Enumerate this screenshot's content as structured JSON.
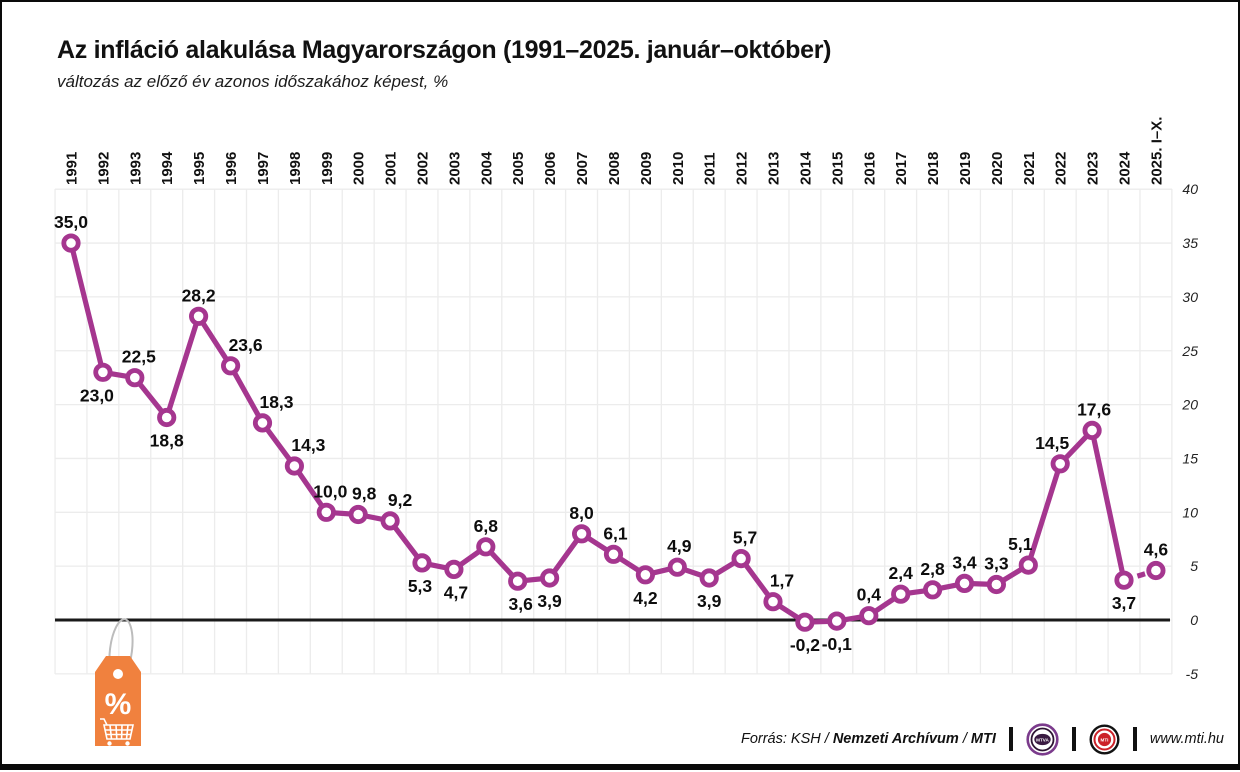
{
  "page": {
    "title": "Az infláció alakulása Magyarországon (1991–2025. január–október)",
    "subtitle": "változás az előző év azonos időszakához képest, %"
  },
  "tag_icon": {
    "percent_label": "%",
    "color": "#F0813E",
    "string_color": "#bcbcbc",
    "cart_icon": "shopping-cart-icon"
  },
  "footer": {
    "source_prefix": "Forrás: KSH /",
    "source_archive": "Nemzeti Archívum",
    "source_sep": "/",
    "source_agency": "MTI",
    "mtva_logo_text": "MTVA",
    "mti_logo_text": "MTI",
    "website": "www.mti.hu"
  },
  "chart_data": {
    "type": "line",
    "title": "Az infláció alakulása Magyarországon (1991–2025. január–október)",
    "subtitle": "változás az előző év azonos időszakához képest, %",
    "categories": [
      "1991",
      "1992",
      "1993",
      "1994",
      "1995",
      "1996",
      "1997",
      "1998",
      "1999",
      "2000",
      "2001",
      "2002",
      "2003",
      "2004",
      "2005",
      "2006",
      "2007",
      "2008",
      "2009",
      "2010",
      "2011",
      "2012",
      "2013",
      "2014",
      "2015",
      "2016",
      "2017",
      "2018",
      "2019",
      "2020",
      "2021",
      "2022",
      "2023",
      "2024",
      "2025. I–X."
    ],
    "values": [
      35.0,
      23.0,
      22.5,
      18.8,
      28.2,
      23.6,
      18.3,
      14.3,
      10.0,
      9.8,
      9.2,
      5.3,
      4.7,
      6.8,
      3.6,
      3.9,
      8.0,
      6.1,
      4.2,
      4.9,
      3.9,
      5.7,
      1.7,
      -0.2,
      -0.1,
      0.4,
      2.4,
      2.8,
      3.4,
      3.3,
      5.1,
      14.5,
      17.6,
      3.7,
      4.6
    ],
    "point_labels": [
      "35,0",
      "23,0",
      "22,5",
      "18,8",
      "28,2",
      "23,6",
      "18,3",
      "14,3",
      "10,0",
      "9,8",
      "9,2",
      "5,3",
      "4,7",
      "6,8",
      "3,6",
      "3,9",
      "8,0",
      "6,1",
      "4,2",
      "4,9",
      "3,9",
      "5,7",
      "1,7",
      "-0,2",
      "-0,1",
      "0,4",
      "2,4",
      "2,8",
      "3,4",
      "3,3",
      "5,1",
      "14,5",
      "17,6",
      "3,7",
      "4,6"
    ],
    "label_side": [
      "above",
      "below",
      "above",
      "below",
      "above",
      "above",
      "above",
      "above",
      "above",
      "above",
      "above",
      "below",
      "below",
      "above",
      "below",
      "below",
      "above",
      "above",
      "below",
      "above",
      "below",
      "above",
      "above",
      "below",
      "below",
      "above",
      "above",
      "above",
      "above",
      "above",
      "above",
      "above",
      "above",
      "below",
      "above"
    ],
    "label_dx": [
      0,
      -6,
      4,
      0,
      0,
      15,
      14,
      14,
      4,
      6,
      10,
      -2,
      2,
      0,
      3,
      0,
      0,
      2,
      0,
      2,
      0,
      4,
      9,
      0,
      0,
      0,
      0,
      0,
      0,
      0,
      -8,
      -8,
      2,
      0,
      0
    ],
    "ylim": [
      -5,
      40
    ],
    "ytick_step": 5,
    "axis_side": "right",
    "grid": true,
    "xlabel": "",
    "ylabel": "%",
    "line_color": "#A5368F",
    "marker_fill": "#FFFFFF",
    "grid_color": "#ECECEC",
    "zero_line_color": "#1A1A1A",
    "dashed_last_segment": true
  }
}
